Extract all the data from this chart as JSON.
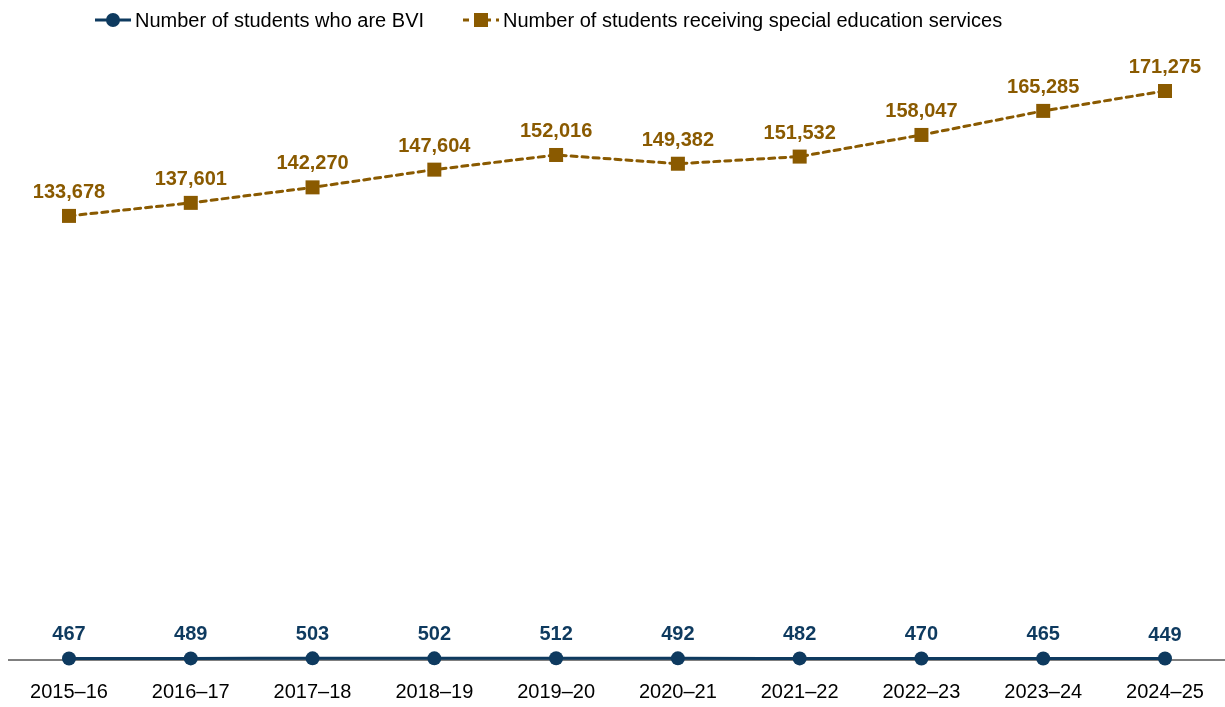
{
  "chart_data": {
    "type": "line",
    "categories": [
      "2015–16",
      "2016–17",
      "2017–18",
      "2018–19",
      "2019–20",
      "2020–21",
      "2021–22",
      "2022–23",
      "2023–24",
      "2024–25"
    ],
    "series": [
      {
        "name": "Number of students who are BVI",
        "color": "#0e3a5f",
        "marker": "circle",
        "line_style": "solid",
        "values": [
          467,
          489,
          503,
          502,
          512,
          492,
          482,
          470,
          465,
          449
        ],
        "value_labels": [
          "467",
          "489",
          "503",
          "502",
          "512",
          "492",
          "482",
          "470",
          "465",
          "449"
        ]
      },
      {
        "name": "Number of students receiving special education services",
        "color": "#8a5a00",
        "marker": "square",
        "line_style": "dashed",
        "values": [
          133678,
          137601,
          142270,
          147604,
          152016,
          149382,
          151532,
          158047,
          165285,
          171275
        ],
        "value_labels": [
          "133,678",
          "137,601",
          "142,270",
          "147,604",
          "152,016",
          "149,382",
          "151,532",
          "158,047",
          "165,285",
          "171,275"
        ]
      }
    ],
    "legend": "top"
  }
}
